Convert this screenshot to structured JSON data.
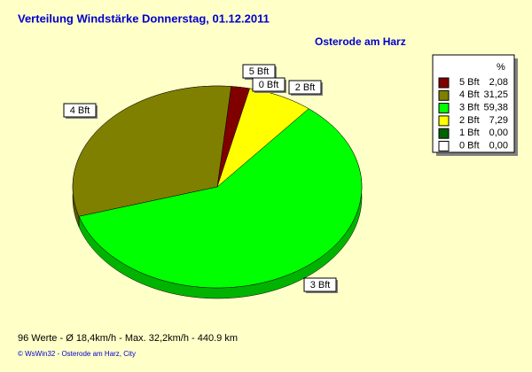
{
  "chart_data": {
    "type": "pie",
    "title": "Verteilung Windstärke  Donnerstag, 01.12.2011",
    "subtitle": "Osterode am Harz",
    "legend_title": "%",
    "categories": [
      "5 Bft",
      "4 Bft",
      "3 Bft",
      "2 Bft",
      "1 Bft",
      "0 Bft"
    ],
    "values": [
      2.08,
      31.25,
      59.38,
      7.29,
      0,
      0
    ],
    "value_labels": [
      "2,08",
      "31,25",
      "59,38",
      "7,29",
      "0,00",
      "0,00"
    ],
    "colors": [
      "#800000",
      "#808000",
      "#00ff00",
      "#ffff00",
      "#006400",
      "#ffffff"
    ],
    "legend": "right",
    "footer": "96 Werte   -   Ø 18,4km/h   -   Max. 32,2km/h   -   440.9 km",
    "copyright": "© WsWin32  -  Osterode am Harz, City"
  }
}
